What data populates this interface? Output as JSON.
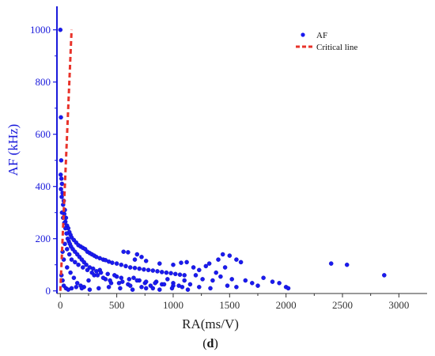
{
  "chart_data": {
    "type": "scatter",
    "panel_label_prefix": "(",
    "panel_label_letter": "d",
    "panel_label_suffix": ")",
    "xlabel": "RA(ms/V)",
    "ylabel": "AF (kHz)",
    "xlim": [
      -30,
      3250
    ],
    "ylim": [
      -10,
      1090
    ],
    "x_ticks": [
      0,
      500,
      1000,
      1500,
      2000,
      2500,
      3000
    ],
    "x_tick_labels": [
      "0",
      "500",
      "1000",
      "1500",
      "2000",
      "2500",
      "3000"
    ],
    "y_ticks": [
      0,
      200,
      400,
      600,
      800,
      1000
    ],
    "y_tick_labels": [
      "0",
      "200",
      "400",
      "600",
      "800",
      "1000"
    ],
    "grid": false,
    "legend_position": "top-right",
    "axis_color": "#1a1adb",
    "series": [
      {
        "name": "AF",
        "kind": "scatter",
        "color": "#1a1aee",
        "points": [
          [
            0,
            1000
          ],
          [
            5,
            665
          ],
          [
            8,
            500
          ],
          [
            3,
            445
          ],
          [
            10,
            430
          ],
          [
            15,
            410
          ],
          [
            6,
            390
          ],
          [
            20,
            375
          ],
          [
            12,
            360
          ],
          [
            30,
            345
          ],
          [
            25,
            330
          ],
          [
            40,
            310
          ],
          [
            35,
            295
          ],
          [
            50,
            280
          ],
          [
            45,
            265
          ],
          [
            60,
            250
          ],
          [
            70,
            240
          ],
          [
            80,
            225
          ],
          [
            90,
            215
          ],
          [
            100,
            205
          ],
          [
            120,
            195
          ],
          [
            140,
            185
          ],
          [
            160,
            175
          ],
          [
            180,
            170
          ],
          [
            200,
            165
          ],
          [
            220,
            160
          ],
          [
            240,
            150
          ],
          [
            260,
            145
          ],
          [
            280,
            140
          ],
          [
            300,
            135
          ],
          [
            320,
            130
          ],
          [
            350,
            125
          ],
          [
            380,
            120
          ],
          [
            400,
            118
          ],
          [
            430,
            112
          ],
          [
            460,
            108
          ],
          [
            500,
            105
          ],
          [
            540,
            100
          ],
          [
            580,
            95
          ],
          [
            620,
            90
          ],
          [
            660,
            88
          ],
          [
            700,
            85
          ],
          [
            740,
            82
          ],
          [
            780,
            80
          ],
          [
            820,
            78
          ],
          [
            860,
            75
          ],
          [
            900,
            72
          ],
          [
            940,
            70
          ],
          [
            980,
            68
          ],
          [
            1020,
            65
          ],
          [
            1060,
            62
          ],
          [
            1100,
            60
          ],
          [
            30,
            120
          ],
          [
            60,
            90
          ],
          [
            90,
            70
          ],
          [
            120,
            50
          ],
          [
            150,
            30
          ],
          [
            180,
            20
          ],
          [
            210,
            15
          ],
          [
            250,
            40
          ],
          [
            300,
            60
          ],
          [
            350,
            80
          ],
          [
            400,
            45
          ],
          [
            450,
            30
          ],
          [
            500,
            55
          ],
          [
            550,
            35
          ],
          [
            600,
            25
          ],
          [
            650,
            50
          ],
          [
            700,
            40
          ],
          [
            750,
            30
          ],
          [
            800,
            20
          ],
          [
            850,
            35
          ],
          [
            900,
            25
          ],
          [
            950,
            45
          ],
          [
            1000,
            30
          ],
          [
            1050,
            20
          ],
          [
            1100,
            40
          ],
          [
            1150,
            25
          ],
          [
            560,
            150
          ],
          [
            600,
            148
          ],
          [
            680,
            140
          ],
          [
            720,
            130
          ],
          [
            660,
            120
          ],
          [
            760,
            115
          ],
          [
            880,
            105
          ],
          [
            1000,
            100
          ],
          [
            1070,
            108
          ],
          [
            1120,
            110
          ],
          [
            1180,
            90
          ],
          [
            1230,
            80
          ],
          [
            1290,
            95
          ],
          [
            1320,
            105
          ],
          [
            1350,
            40
          ],
          [
            1400,
            120
          ],
          [
            1440,
            140
          ],
          [
            1460,
            90
          ],
          [
            1500,
            135
          ],
          [
            1560,
            120
          ],
          [
            1600,
            110
          ],
          [
            1640,
            40
          ],
          [
            1700,
            30
          ],
          [
            1750,
            20
          ],
          [
            1800,
            50
          ],
          [
            1880,
            35
          ],
          [
            1940,
            30
          ],
          [
            2000,
            15
          ],
          [
            2020,
            10
          ],
          [
            1200,
            60
          ],
          [
            1260,
            45
          ],
          [
            1380,
            70
          ],
          [
            1420,
            55
          ],
          [
            1520,
            45
          ],
          [
            2400,
            105
          ],
          [
            2540,
            100
          ],
          [
            2870,
            60
          ],
          [
            15,
            300
          ],
          [
            25,
            280
          ],
          [
            35,
            260
          ],
          [
            45,
            240
          ],
          [
            55,
            220
          ],
          [
            65,
            200
          ],
          [
            75,
            190
          ],
          [
            85,
            180
          ],
          [
            95,
            170
          ],
          [
            110,
            160
          ],
          [
            130,
            150
          ],
          [
            150,
            140
          ],
          [
            170,
            130
          ],
          [
            190,
            120
          ],
          [
            210,
            110
          ],
          [
            230,
            100
          ],
          [
            260,
            90
          ],
          [
            290,
            85
          ],
          [
            320,
            75
          ],
          [
            360,
            70
          ],
          [
            420,
            65
          ],
          [
            480,
            60
          ],
          [
            540,
            50
          ],
          [
            610,
            45
          ],
          [
            680,
            40
          ],
          [
            760,
            35
          ],
          [
            840,
            30
          ],
          [
            920,
            25
          ],
          [
            1000,
            20
          ],
          [
            1080,
            15
          ],
          [
            20,
            150
          ],
          [
            40,
            180
          ],
          [
            60,
            160
          ],
          [
            80,
            140
          ],
          [
            100,
            120
          ],
          [
            130,
            110
          ],
          [
            160,
            100
          ],
          [
            200,
            90
          ],
          [
            240,
            80
          ],
          [
            280,
            70
          ],
          [
            330,
            60
          ],
          [
            380,
            50
          ],
          [
            440,
            40
          ],
          [
            520,
            30
          ],
          [
            620,
            20
          ],
          [
            720,
            15
          ],
          [
            820,
            10
          ],
          [
            10,
            60
          ],
          [
            20,
            40
          ],
          [
            30,
            20
          ],
          [
            50,
            10
          ],
          [
            70,
            5
          ],
          [
            100,
            10
          ],
          [
            140,
            15
          ],
          [
            190,
            10
          ],
          [
            260,
            5
          ],
          [
            340,
            10
          ],
          [
            430,
            15
          ],
          [
            530,
            10
          ],
          [
            640,
            5
          ],
          [
            760,
            10
          ],
          [
            880,
            5
          ],
          [
            990,
            10
          ],
          [
            1130,
            5
          ],
          [
            1230,
            15
          ],
          [
            1330,
            10
          ],
          [
            1480,
            20
          ],
          [
            1560,
            15
          ]
        ]
      },
      {
        "name": "Critical line",
        "kind": "line",
        "color": "#e8332a",
        "dashed": true,
        "points": [
          [
            0,
            0
          ],
          [
            100,
            1000
          ]
        ]
      }
    ]
  }
}
